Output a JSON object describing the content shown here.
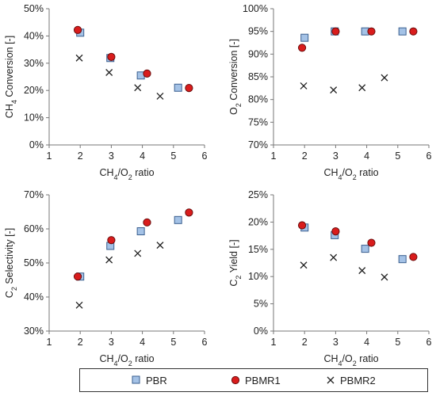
{
  "chart_data": [
    {
      "type": "scatter",
      "xlabel": "CH4/O2 ratio",
      "ylabel": "CH4 Conversion [-]",
      "xlim": [
        1,
        6
      ],
      "ylim": [
        0,
        50
      ],
      "xticks": [
        "1",
        "2",
        "3",
        "4",
        "5",
        "6"
      ],
      "yticks": [
        "0%",
        "10%",
        "20%",
        "30%",
        "40%",
        "50%"
      ],
      "grid": false,
      "series": [
        {
          "name": "PBR",
          "x": [
            2.0,
            2.97,
            3.95,
            5.15
          ],
          "y": [
            41.2,
            31.9,
            25.5,
            21.0
          ]
        },
        {
          "name": "PBMR1",
          "x": [
            1.92,
            3.0,
            4.15,
            5.5
          ],
          "y": [
            42.2,
            32.3,
            26.2,
            20.9
          ]
        },
        {
          "name": "PBMR2",
          "x": [
            1.97,
            2.93,
            3.85,
            4.57
          ],
          "y": [
            31.9,
            26.6,
            21.0,
            17.9
          ]
        }
      ]
    },
    {
      "type": "scatter",
      "xlabel": "CH4/O2 ratio",
      "ylabel": "O2 Conversion [-]",
      "xlim": [
        1,
        6
      ],
      "ylim": [
        70,
        100
      ],
      "xticks": [
        "1",
        "2",
        "3",
        "4",
        "5",
        "6"
      ],
      "yticks": [
        "70%",
        "75%",
        "80%",
        "85%",
        "90%",
        "95%",
        "100%"
      ],
      "grid": false,
      "series": [
        {
          "name": "PBR",
          "x": [
            2.0,
            2.97,
            3.95,
            5.15
          ],
          "y": [
            93.6,
            95.0,
            95.0,
            95.0
          ]
        },
        {
          "name": "PBMR1",
          "x": [
            1.92,
            3.0,
            4.15,
            5.5
          ],
          "y": [
            91.4,
            95.0,
            95.0,
            95.0
          ]
        },
        {
          "name": "PBMR2",
          "x": [
            1.97,
            2.93,
            3.85,
            4.57
          ],
          "y": [
            83.0,
            82.1,
            82.6,
            84.8
          ]
        }
      ]
    },
    {
      "type": "scatter",
      "xlabel": "CH4/O2 ratio",
      "ylabel": "C2 Selectivity [-]",
      "xlim": [
        1,
        6
      ],
      "ylim": [
        30,
        70
      ],
      "xticks": [
        "1",
        "2",
        "3",
        "4",
        "5",
        "6"
      ],
      "yticks": [
        "30%",
        "40%",
        "50%",
        "60%",
        "70%"
      ],
      "grid": false,
      "series": [
        {
          "name": "PBR",
          "x": [
            2.0,
            2.97,
            3.95,
            5.15
          ],
          "y": [
            46.0,
            55.0,
            59.3,
            62.6
          ]
        },
        {
          "name": "PBMR1",
          "x": [
            1.92,
            3.0,
            4.15,
            5.5
          ],
          "y": [
            46.0,
            56.7,
            61.9,
            64.8
          ]
        },
        {
          "name": "PBMR2",
          "x": [
            1.97,
            2.93,
            3.85,
            4.57
          ],
          "y": [
            37.6,
            50.9,
            52.8,
            55.2
          ]
        }
      ]
    },
    {
      "type": "scatter",
      "xlabel": "CH4/O2 ratio",
      "ylabel": "C2 Yield [-]",
      "xlim": [
        1,
        6
      ],
      "ylim": [
        0,
        25
      ],
      "xticks": [
        "1",
        "2",
        "3",
        "4",
        "5",
        "6"
      ],
      "yticks": [
        "0%",
        "5%",
        "10%",
        "15%",
        "20%",
        "25%"
      ],
      "grid": false,
      "series": [
        {
          "name": "PBR",
          "x": [
            2.0,
            2.97,
            3.95,
            5.15
          ],
          "y": [
            19.0,
            17.6,
            15.1,
            13.2
          ]
        },
        {
          "name": "PBMR1",
          "x": [
            1.92,
            3.0,
            4.15,
            5.5
          ],
          "y": [
            19.4,
            18.3,
            16.2,
            13.6
          ]
        },
        {
          "name": "PBMR2",
          "x": [
            1.97,
            2.93,
            3.85,
            4.57
          ],
          "y": [
            12.1,
            13.5,
            11.1,
            9.9
          ]
        }
      ]
    }
  ],
  "legend": {
    "placement": "bottom",
    "items": [
      {
        "label": "PBR",
        "marker": "square",
        "color": "#a4c2e6",
        "stroke": "#3a5f8f"
      },
      {
        "label": "PBMR1",
        "marker": "circle",
        "color": "#d91c1c",
        "stroke": "#6a0c0c"
      },
      {
        "label": "PBMR2",
        "marker": "cross",
        "color": "#222222",
        "stroke": "#222222"
      }
    ]
  }
}
